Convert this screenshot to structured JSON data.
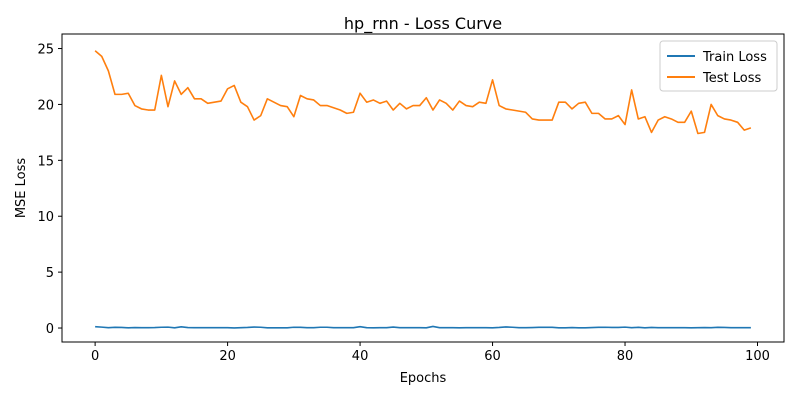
{
  "chart_data": {
    "type": "line",
    "title": "hp_rnn - Loss Curve",
    "xlabel": "Epochs",
    "ylabel": "MSE Loss",
    "xlim": [
      -5,
      104
    ],
    "ylim": [
      -1.25,
      26.3
    ],
    "xticks": [
      0,
      20,
      40,
      60,
      80,
      100
    ],
    "yticks": [
      0,
      5,
      10,
      15,
      20,
      25
    ],
    "grid": false,
    "legend": "top-right",
    "x": [
      0,
      1,
      2,
      3,
      4,
      5,
      6,
      7,
      8,
      9,
      10,
      11,
      12,
      13,
      14,
      15,
      16,
      17,
      18,
      19,
      20,
      21,
      22,
      23,
      24,
      25,
      26,
      27,
      28,
      29,
      30,
      31,
      32,
      33,
      34,
      35,
      36,
      37,
      38,
      39,
      40,
      41,
      42,
      43,
      44,
      45,
      46,
      47,
      48,
      49,
      50,
      51,
      52,
      53,
      54,
      55,
      56,
      57,
      58,
      59,
      60,
      61,
      62,
      63,
      64,
      65,
      66,
      67,
      68,
      69,
      70,
      71,
      72,
      73,
      74,
      75,
      76,
      77,
      78,
      79,
      80,
      81,
      82,
      83,
      84,
      85,
      86,
      87,
      88,
      89,
      90,
      91,
      92,
      93,
      94,
      95,
      96,
      97,
      98,
      99
    ],
    "series": [
      {
        "name": "Train Loss",
        "color": "#1f77b4",
        "values": [
          0.12,
          0.08,
          0.03,
          0.06,
          0.05,
          0.02,
          0.04,
          0.03,
          0.03,
          0.04,
          0.07,
          0.08,
          0.02,
          0.11,
          0.04,
          0.03,
          0.03,
          0.03,
          0.03,
          0.03,
          0.03,
          0.01,
          0.03,
          0.05,
          0.09,
          0.07,
          0.02,
          0.02,
          0.02,
          0.02,
          0.07,
          0.06,
          0.03,
          0.03,
          0.07,
          0.07,
          0.03,
          0.03,
          0.03,
          0.03,
          0.12,
          0.03,
          0.02,
          0.03,
          0.03,
          0.09,
          0.03,
          0.03,
          0.03,
          0.03,
          0.02,
          0.14,
          0.03,
          0.03,
          0.03,
          0.02,
          0.03,
          0.03,
          0.03,
          0.03,
          0.02,
          0.05,
          0.1,
          0.07,
          0.03,
          0.03,
          0.04,
          0.06,
          0.06,
          0.06,
          0.02,
          0.02,
          0.04,
          0.02,
          0.02,
          0.04,
          0.06,
          0.07,
          0.05,
          0.05,
          0.08,
          0.03,
          0.06,
          0.02,
          0.05,
          0.03,
          0.03,
          0.03,
          0.03,
          0.03,
          0.02,
          0.03,
          0.04,
          0.03,
          0.06,
          0.05,
          0.03,
          0.03,
          0.03,
          0.03
        ]
      },
      {
        "name": "Test Loss",
        "color": "#ff7f0e",
        "values": [
          24.8,
          24.3,
          23.0,
          20.9,
          20.9,
          21.0,
          19.9,
          19.6,
          19.5,
          19.5,
          22.6,
          19.8,
          22.1,
          20.9,
          21.5,
          20.5,
          20.5,
          20.1,
          20.2,
          20.3,
          21.4,
          21.7,
          20.2,
          19.8,
          18.6,
          19.0,
          20.5,
          20.2,
          19.9,
          19.8,
          18.9,
          20.8,
          20.5,
          20.4,
          19.9,
          19.9,
          19.7,
          19.5,
          19.2,
          19.3,
          21.0,
          20.2,
          20.4,
          20.1,
          20.3,
          19.5,
          20.1,
          19.6,
          19.9,
          19.9,
          20.6,
          19.5,
          20.4,
          20.1,
          19.5,
          20.3,
          19.9,
          19.8,
          20.2,
          20.1,
          22.2,
          19.9,
          19.6,
          19.5,
          19.4,
          19.3,
          18.7,
          18.6,
          18.6,
          18.6,
          20.2,
          20.2,
          19.6,
          20.1,
          20.2,
          19.2,
          19.2,
          18.7,
          18.7,
          19.0,
          18.2,
          21.3,
          18.7,
          18.9,
          17.5,
          18.6,
          18.9,
          18.7,
          18.4,
          18.4,
          19.4,
          17.4,
          17.5,
          20.0,
          19.0,
          18.7,
          18.6,
          18.4,
          17.7,
          17.9
        ]
      }
    ]
  }
}
